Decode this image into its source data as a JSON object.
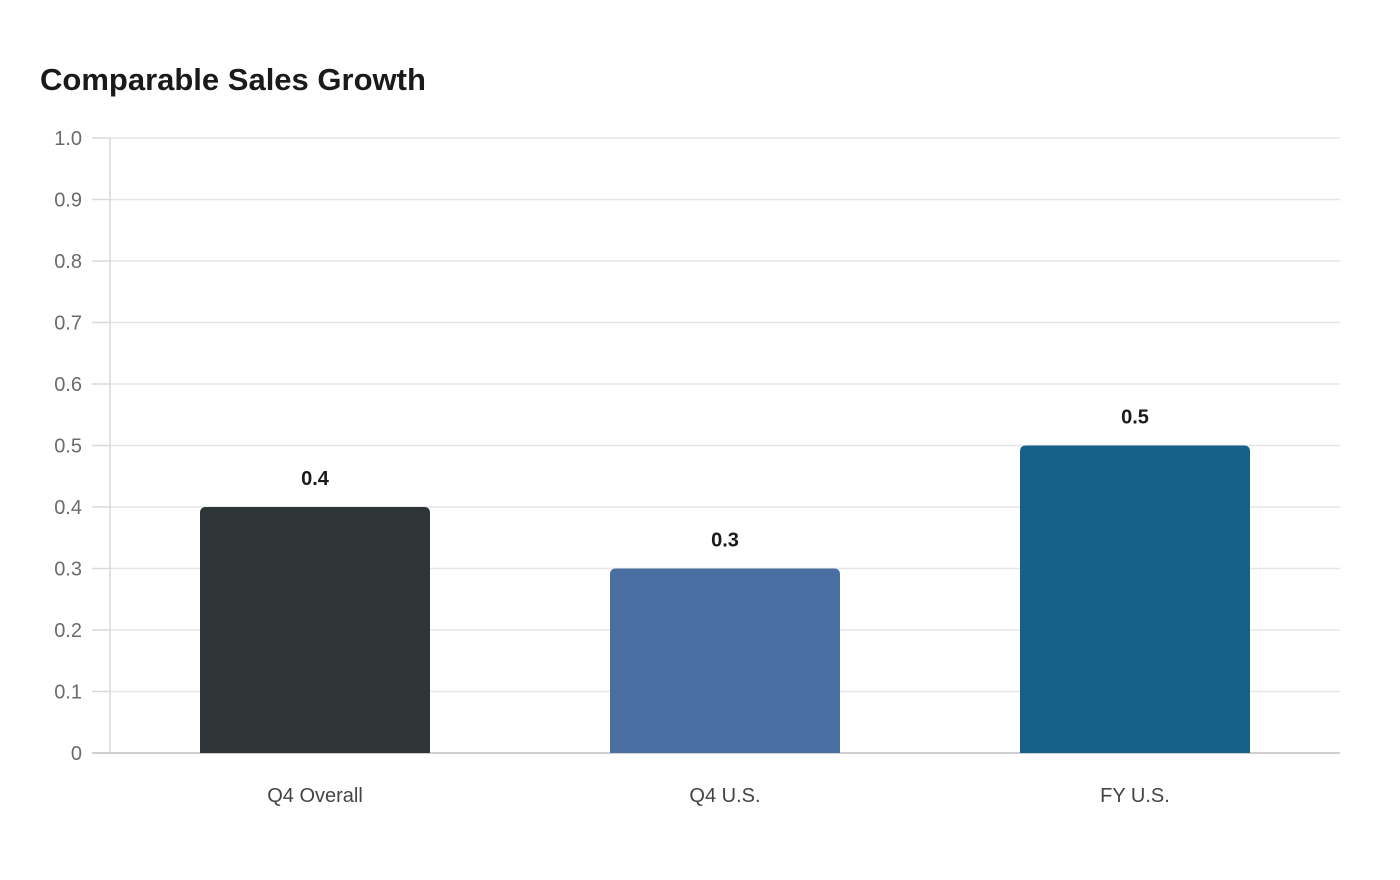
{
  "chart_data": {
    "type": "bar",
    "title": "Comparable Sales Growth",
    "xlabel": "",
    "ylabel": "",
    "categories": [
      "Q4 Overall",
      "Q4 U.S.",
      "FY U.S."
    ],
    "values": [
      0.4,
      0.3,
      0.5
    ],
    "data_labels": [
      "0.4",
      "0.3",
      "0.5"
    ],
    "bar_colors": [
      "#2e3536",
      "#4a6ea2",
      "#176087"
    ],
    "ylim": [
      0,
      1.0
    ],
    "y_ticks": [
      0,
      0.1,
      0.2,
      0.3,
      0.4,
      0.5,
      0.6,
      0.7,
      0.8,
      0.9,
      1.0
    ],
    "y_tick_labels": [
      "0",
      "0.1",
      "0.2",
      "0.3",
      "0.4",
      "0.5",
      "0.6",
      "0.7",
      "0.8",
      "0.9",
      "1.0"
    ],
    "grid": true,
    "legend": "none"
  }
}
